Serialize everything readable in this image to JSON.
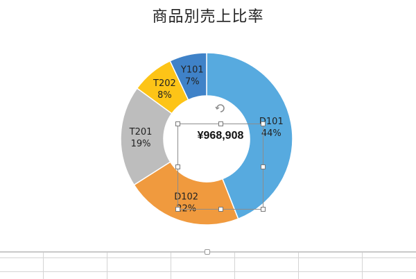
{
  "chart_data": {
    "type": "pie",
    "title": "商品別売上比率",
    "center_label": "¥968,908",
    "categories": [
      "D101",
      "D102",
      "T201",
      "T202",
      "Y101"
    ],
    "values": [
      44,
      22,
      19,
      8,
      7
    ],
    "labels": [
      "44%",
      "22%",
      "19%",
      "8%",
      "7%"
    ],
    "colors": [
      "#57aadf",
      "#f09a3e",
      "#bdbdbd",
      "#fdc417",
      "#3f82c8"
    ],
    "style": "doughnut",
    "legend": "none"
  }
}
